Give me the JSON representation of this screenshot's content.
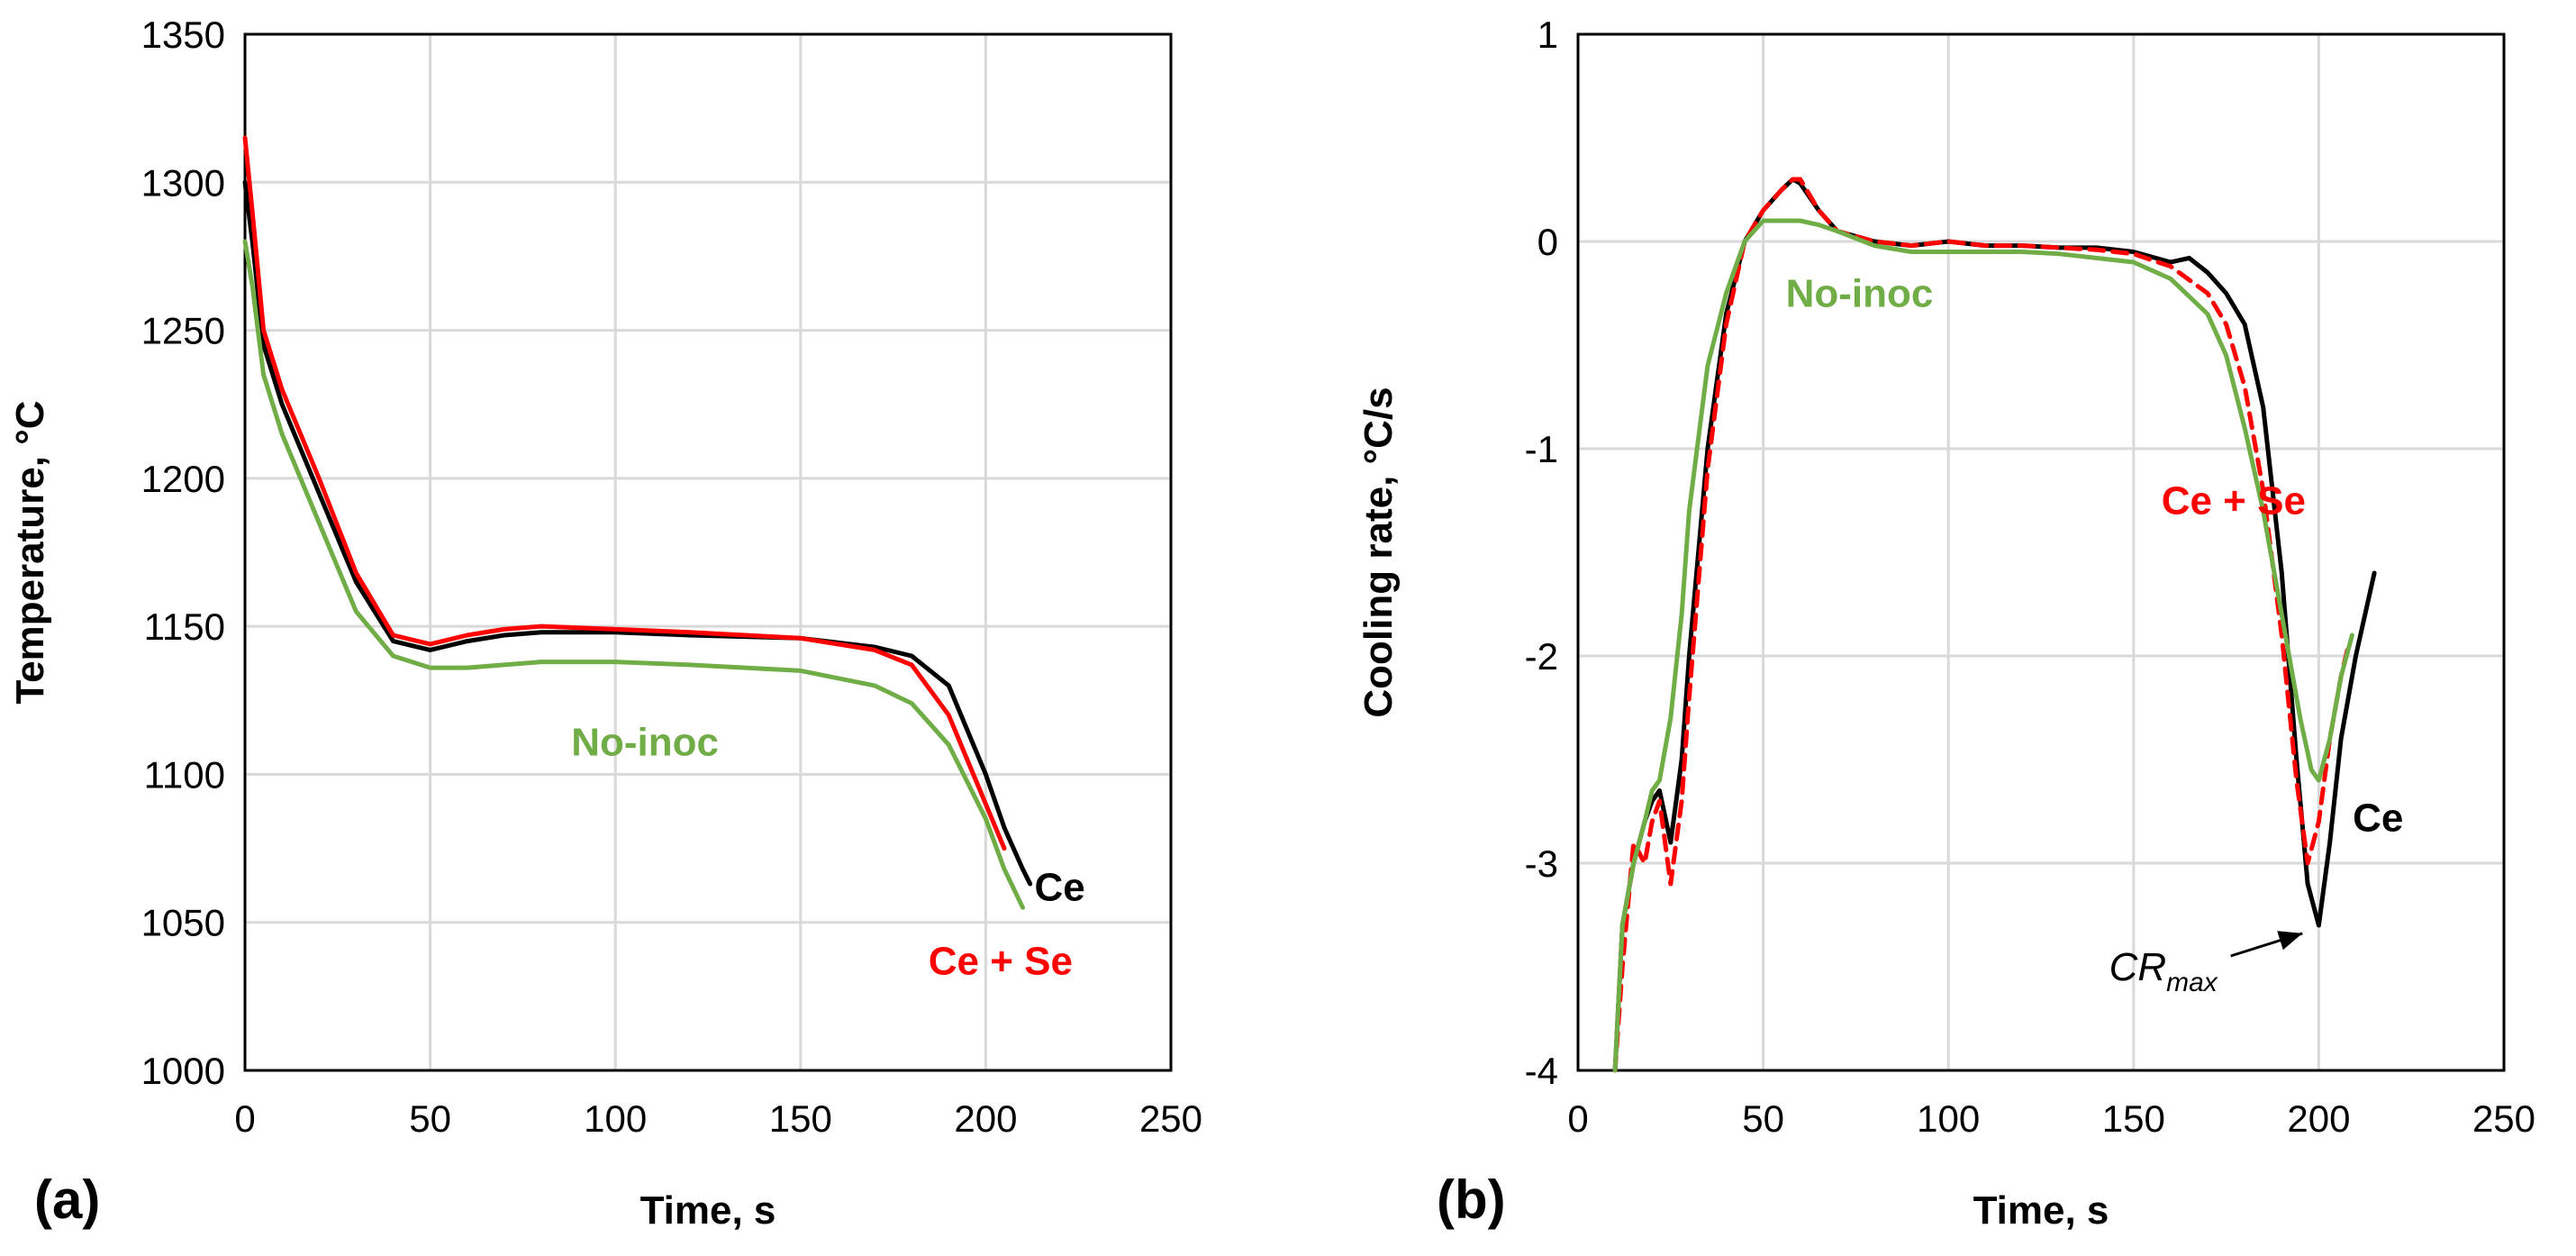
{
  "colors": {
    "ce": "#000000",
    "ce_se": "#ff0000",
    "no_inoc": "#70ad47",
    "grid": "#d9d9d9"
  },
  "chart_data": [
    {
      "type": "line",
      "panel_label": "(a)",
      "xlabel": "Time, s",
      "ylabel": "Temperature, °C",
      "xlim": [
        0,
        250
      ],
      "ylim": [
        1000,
        1350
      ],
      "xticks": [
        "0",
        "50",
        "100",
        "150",
        "200",
        "250"
      ],
      "yticks": [
        "1000",
        "1050",
        "1100",
        "1150",
        "1200",
        "1250",
        "1300",
        "1350"
      ],
      "grid": true,
      "legend": "inline labels",
      "series": [
        {
          "name": "Ce",
          "color": "#000000",
          "dashed": false,
          "x": [
            0,
            2,
            5,
            10,
            20,
            30,
            40,
            50,
            60,
            70,
            80,
            100,
            120,
            150,
            170,
            180,
            190,
            200,
            205,
            210,
            212
          ],
          "y": [
            1300,
            1280,
            1245,
            1225,
            1195,
            1165,
            1145,
            1142,
            1145,
            1147,
            1148,
            1148,
            1147,
            1146,
            1143,
            1140,
            1130,
            1100,
            1082,
            1068,
            1063
          ]
        },
        {
          "name": "Ce + Se",
          "color": "#ff0000",
          "dashed": false,
          "x": [
            0,
            2,
            5,
            10,
            20,
            30,
            40,
            50,
            60,
            70,
            80,
            100,
            120,
            150,
            170,
            180,
            190,
            195,
            200,
            205
          ],
          "y": [
            1315,
            1290,
            1250,
            1230,
            1200,
            1168,
            1147,
            1144,
            1147,
            1149,
            1150,
            1149,
            1148,
            1146,
            1142,
            1137,
            1120,
            1105,
            1090,
            1075
          ]
        },
        {
          "name": "No-inoc",
          "color": "#70ad47",
          "dashed": false,
          "x": [
            0,
            2,
            5,
            10,
            20,
            30,
            40,
            50,
            60,
            70,
            80,
            100,
            120,
            150,
            170,
            180,
            190,
            200,
            205,
            210
          ],
          "y": [
            1280,
            1265,
            1235,
            1215,
            1185,
            1155,
            1140,
            1136,
            1136,
            1137,
            1138,
            1138,
            1137,
            1135,
            1130,
            1124,
            1110,
            1085,
            1068,
            1055
          ]
        }
      ],
      "annotations": [
        {
          "text": "No-inoc",
          "color": "#70ad47",
          "x": 108,
          "y": 1111
        },
        {
          "text": "Ce",
          "color": "#000000",
          "x": 220,
          "y": 1062
        },
        {
          "text": "Ce + Se",
          "color": "#ff0000",
          "x": 204,
          "y": 1037
        }
      ]
    },
    {
      "type": "line",
      "panel_label": "(b)",
      "xlabel": "Time, s",
      "ylabel": "Cooling rate, °C/s",
      "xlim": [
        0,
        250
      ],
      "ylim": [
        -4,
        1
      ],
      "xticks": [
        "0",
        "50",
        "100",
        "150",
        "200",
        "250"
      ],
      "yticks": [
        "-4",
        "-3",
        "-2",
        "-1",
        "0",
        "1"
      ],
      "grid": true,
      "legend": "inline labels",
      "series": [
        {
          "name": "Ce",
          "color": "#000000",
          "dashed": false,
          "x": [
            10,
            12,
            15,
            18,
            20,
            22,
            25,
            28,
            30,
            35,
            40,
            45,
            50,
            55,
            58,
            60,
            65,
            70,
            80,
            90,
            100,
            110,
            120,
            130,
            140,
            150,
            160,
            165,
            170,
            175,
            180,
            185,
            190,
            194,
            197,
            200,
            203,
            206,
            210,
            215
          ],
          "y": [
            -4.0,
            -3.3,
            -3.0,
            -2.8,
            -2.7,
            -2.65,
            -2.9,
            -2.5,
            -2.0,
            -1.0,
            -0.35,
            0.0,
            0.15,
            0.25,
            0.3,
            0.28,
            0.15,
            0.05,
            0.0,
            -0.02,
            0.0,
            -0.02,
            -0.02,
            -0.03,
            -0.03,
            -0.05,
            -0.1,
            -0.08,
            -0.15,
            -0.25,
            -0.4,
            -0.8,
            -1.6,
            -2.5,
            -3.1,
            -3.3,
            -2.9,
            -2.4,
            -2.0,
            -1.6
          ]
        },
        {
          "name": "Ce + Se",
          "color": "#ff0000",
          "dashed": true,
          "x": [
            10,
            12,
            15,
            18,
            20,
            22,
            25,
            28,
            30,
            35,
            40,
            45,
            50,
            55,
            58,
            60,
            65,
            70,
            80,
            90,
            100,
            110,
            120,
            130,
            140,
            150,
            160,
            170,
            175,
            180,
            185,
            190,
            194,
            197,
            200,
            203,
            206,
            208
          ],
          "y": [
            -4.0,
            -3.5,
            -2.9,
            -3.0,
            -2.8,
            -2.7,
            -3.1,
            -2.7,
            -2.2,
            -1.1,
            -0.4,
            0.0,
            0.15,
            0.25,
            0.3,
            0.3,
            0.15,
            0.05,
            0.0,
            -0.02,
            0.0,
            -0.02,
            -0.02,
            -0.03,
            -0.04,
            -0.06,
            -0.12,
            -0.25,
            -0.4,
            -0.7,
            -1.2,
            -1.9,
            -2.6,
            -3.0,
            -2.8,
            -2.4,
            -2.1,
            -1.95
          ]
        },
        {
          "name": "No-inoc",
          "color": "#70ad47",
          "dashed": false,
          "x": [
            10,
            12,
            15,
            18,
            20,
            22,
            25,
            28,
            30,
            35,
            40,
            45,
            50,
            55,
            60,
            65,
            70,
            80,
            90,
            100,
            110,
            120,
            130,
            140,
            150,
            160,
            170,
            175,
            180,
            185,
            190,
            195,
            198,
            200,
            203,
            206,
            209
          ],
          "y": [
            -4.0,
            -3.3,
            -3.0,
            -2.8,
            -2.65,
            -2.6,
            -2.3,
            -1.8,
            -1.3,
            -0.6,
            -0.25,
            0.0,
            0.1,
            0.1,
            0.1,
            0.08,
            0.05,
            -0.02,
            -0.05,
            -0.05,
            -0.05,
            -0.05,
            -0.06,
            -0.08,
            -0.1,
            -0.18,
            -0.35,
            -0.55,
            -0.9,
            -1.3,
            -1.8,
            -2.3,
            -2.55,
            -2.6,
            -2.4,
            -2.1,
            -1.9
          ]
        }
      ],
      "annotations": [
        {
          "text": "No-inoc",
          "color": "#70ad47",
          "x": 76,
          "y": -0.25
        },
        {
          "text": "Ce + Se",
          "color": "#ff0000",
          "x": 177,
          "y": -1.25
        },
        {
          "text": "Ce",
          "color": "#000000",
          "x": 216,
          "y": -2.78
        }
      ],
      "callout": {
        "text": "CR",
        "subscript": "max",
        "x": 158,
        "y": -3.5,
        "target_x": 199,
        "target_y": -3.33
      }
    }
  ]
}
